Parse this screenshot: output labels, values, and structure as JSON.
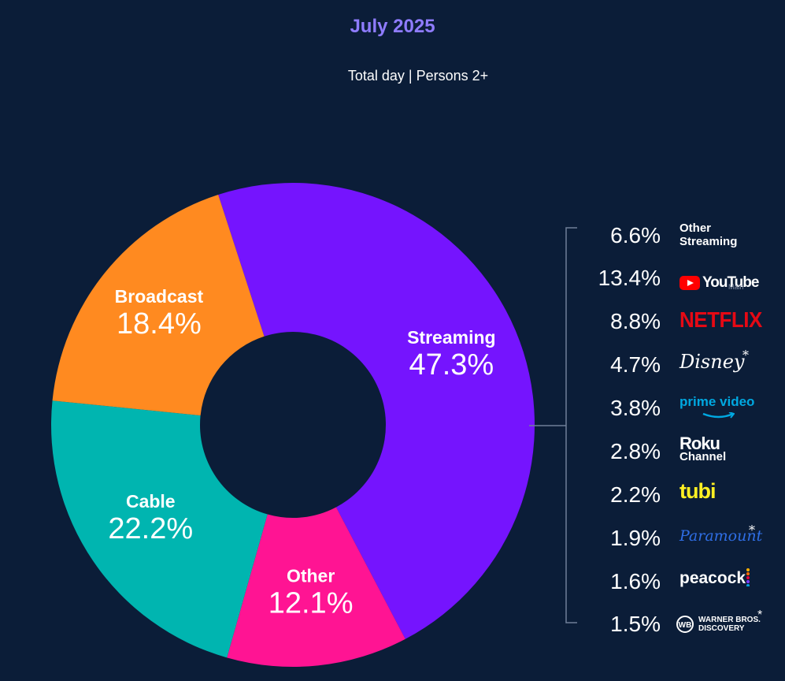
{
  "title": "July 2025",
  "subtitle": "Total day | Persons 2+",
  "chart_data": {
    "type": "pie",
    "title": "July 2025",
    "subtitle": "Total day | Persons 2+",
    "segments": [
      {
        "label": "Streaming",
        "value": 47.3,
        "display": "47.3%",
        "color": "#7514fe"
      },
      {
        "label": "Other",
        "value": 12.1,
        "display": "12.1%",
        "color": "#ff1493"
      },
      {
        "label": "Cable",
        "value": 22.2,
        "display": "22.2%",
        "color": "#00b5b0"
      },
      {
        "label": "Broadcast",
        "value": 18.4,
        "display": "18.4%",
        "color": "#ff8a20"
      }
    ],
    "streaming_breakdown": [
      {
        "label": "Other Streaming",
        "value": 6.6,
        "display": "6.6%"
      },
      {
        "label": "YouTube Main",
        "value": 13.4,
        "display": "13.4%"
      },
      {
        "label": "Netflix",
        "value": 8.8,
        "display": "8.8%"
      },
      {
        "label": "Disney*",
        "value": 4.7,
        "display": "4.7%"
      },
      {
        "label": "prime video",
        "value": 3.8,
        "display": "3.8%"
      },
      {
        "label": "Roku Channel",
        "value": 2.8,
        "display": "2.8%"
      },
      {
        "label": "tubi",
        "value": 2.2,
        "display": "2.2%"
      },
      {
        "label": "Paramount*",
        "value": 1.9,
        "display": "1.9%"
      },
      {
        "label": "peacock",
        "value": 1.6,
        "display": "1.6%"
      },
      {
        "label": "Warner Bros. Discovery*",
        "value": 1.5,
        "display": "1.5%"
      }
    ]
  },
  "brands": {
    "other_line1": "Other",
    "other_line2": "Streaming",
    "youtube": "YouTube",
    "youtube_sub": "Main",
    "netflix": "NETFLIX",
    "disney": "Disney",
    "prime": "prime video",
    "roku": "Roku",
    "roku_sub": "Channel",
    "tubi": "tubi",
    "paramount": "Paramount",
    "peacock": "peacock",
    "wbd_line1": "WARNER BROS.",
    "wbd_line2": "DISCOVERY",
    "wbd_mark": "WB",
    "asterisk": "*"
  },
  "icons": {
    "youtube": "youtube-logo-icon",
    "prime_smile": "amazon-smile-icon",
    "wbd_shield": "wb-shield-icon"
  }
}
